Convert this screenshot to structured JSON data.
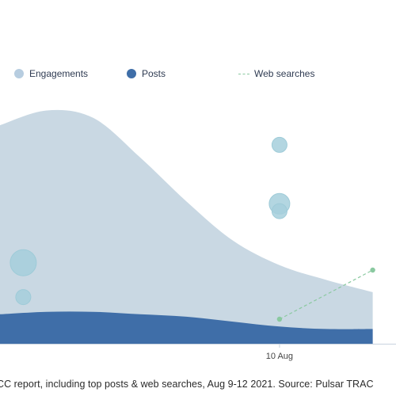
{
  "legend": {
    "engagements": "Engagements",
    "posts": "Posts",
    "web_searches": "Web searches"
  },
  "caption": "CC report, including top posts & web searches, Aug 9-12 2021. Source: Pulsar TRAC",
  "colors": {
    "engagements": "#c9d8e3",
    "engagements_legend": "#b7cde0",
    "posts": "#3f6ea8",
    "web_searches": "#8ac9a0",
    "bubbles": "#a6cfdc"
  },
  "chart_data": {
    "type": "area",
    "x_ticks": [
      {
        "date": "2021-08-10",
        "label": "10 Aug"
      }
    ],
    "series": [
      {
        "name": "Engagements",
        "type": "area",
        "points": [
          [
            "2021-08-09T00:00",
            89
          ],
          [
            "2021-08-09T04:00",
            95
          ],
          [
            "2021-08-09T08:00",
            92
          ],
          [
            "2021-08-09T12:00",
            76
          ],
          [
            "2021-08-09T16:00",
            58
          ],
          [
            "2021-08-09T20:00",
            42
          ],
          [
            "2021-08-10T00:00",
            32
          ],
          [
            "2021-08-10T04:00",
            26
          ],
          [
            "2021-08-10T08:00",
            21
          ]
        ]
      },
      {
        "name": "Posts",
        "type": "area",
        "points": [
          [
            "2021-08-09T00:00",
            12
          ],
          [
            "2021-08-09T04:00",
            13
          ],
          [
            "2021-08-09T08:00",
            13
          ],
          [
            "2021-08-09T12:00",
            12
          ],
          [
            "2021-08-09T16:00",
            11
          ],
          [
            "2021-08-09T20:00",
            9
          ],
          [
            "2021-08-10T00:00",
            7
          ],
          [
            "2021-08-10T04:00",
            6
          ],
          [
            "2021-08-10T08:00",
            6
          ]
        ]
      },
      {
        "name": "Web searches",
        "type": "line",
        "points": [
          [
            "2021-08-10T00:00",
            10
          ],
          [
            "2021-08-10T08:00",
            30
          ]
        ]
      },
      {
        "type": "bubble",
        "points": [
          {
            "x": "2021-08-09T02:00",
            "y": 33,
            "size": 3
          },
          {
            "x": "2021-08-09T02:00",
            "y": 19,
            "size": 1
          },
          {
            "x": "2021-08-10T00:00",
            "y": 81,
            "size": 1
          },
          {
            "x": "2021-08-10T00:00",
            "y": 57,
            "size": 2
          },
          {
            "x": "2021-08-10T00:00",
            "y": 54,
            "size": 1
          }
        ]
      }
    ],
    "ylim": [
      0,
      100
    ]
  }
}
